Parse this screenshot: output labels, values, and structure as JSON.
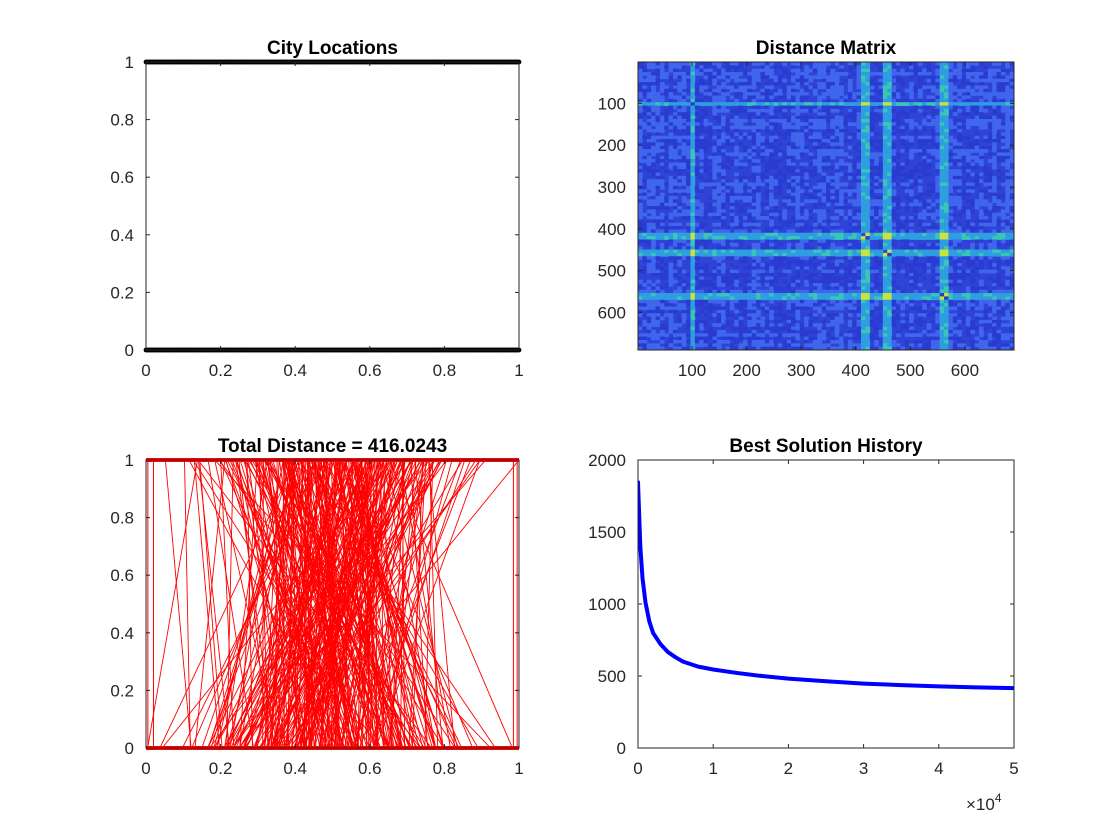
{
  "figure": {
    "background": "#ffffff"
  },
  "chart_data": [
    {
      "type": "scatter",
      "title": "City Locations",
      "xlim": [
        0,
        1
      ],
      "ylim": [
        0,
        1
      ],
      "xticks": [
        "0",
        "0.2",
        "0.4",
        "0.6",
        "0.8",
        "1"
      ],
      "yticks": [
        "0",
        "0.2",
        "0.4",
        "0.6",
        "0.8",
        "1"
      ],
      "grid": false,
      "color": "#000000",
      "n_points": 690,
      "points_description": "cities lie on y = 0 and y = 1 across x from 0 to 1"
    },
    {
      "type": "heatmap",
      "title": "Distance Matrix",
      "xlim": [
        1,
        690
      ],
      "ylim": [
        1,
        690
      ],
      "xticks": [
        "100",
        "200",
        "300",
        "400",
        "500",
        "600"
      ],
      "yticks": [
        "100",
        "200",
        "300",
        "400",
        "500",
        "600"
      ],
      "bright_rows_cols": [
        100,
        415,
        455,
        560
      ],
      "colormap": [
        "#2a3bd1",
        "#3f66ec",
        "#2f9ee0",
        "#39c7b5",
        "#c9e33f"
      ],
      "diagonal": "dark"
    },
    {
      "type": "line",
      "title": "Total Distance = 416.0243",
      "xlim": [
        0,
        1
      ],
      "ylim": [
        0,
        1
      ],
      "xticks": [
        "0",
        "0.2",
        "0.4",
        "0.6",
        "0.8",
        "1"
      ],
      "yticks": [
        "0",
        "0.2",
        "0.4",
        "0.6",
        "0.8",
        "1"
      ],
      "color": "#ff0000",
      "segments_description": "tour edges connecting cities on y = 0 and y = 1"
    },
    {
      "type": "line",
      "title": "Best Solution History",
      "xlim": [
        0,
        50000
      ],
      "ylim": [
        0,
        2000
      ],
      "xticks": [
        "0",
        "1",
        "2",
        "3",
        "4",
        "5"
      ],
      "xtick_values": [
        0,
        10000,
        20000,
        30000,
        40000,
        50000
      ],
      "yticks": [
        "0",
        "500",
        "1000",
        "1500",
        "2000"
      ],
      "x_exponent_label": "×10",
      "x_exponent_power": "4",
      "color": "#0000ff",
      "series": [
        {
          "x": [
            0,
            300,
            600,
            1000,
            1500,
            2000,
            3000,
            4000,
            5000,
            6000,
            8000,
            10000,
            13000,
            16000,
            20000,
            25000,
            30000,
            35000,
            40000,
            45000,
            50000
          ],
          "values": [
            1845,
            1400,
            1180,
            1010,
            880,
            800,
            720,
            665,
            630,
            600,
            565,
            545,
            522,
            503,
            482,
            463,
            447,
            437,
            428,
            421,
            416
          ]
        }
      ]
    }
  ]
}
